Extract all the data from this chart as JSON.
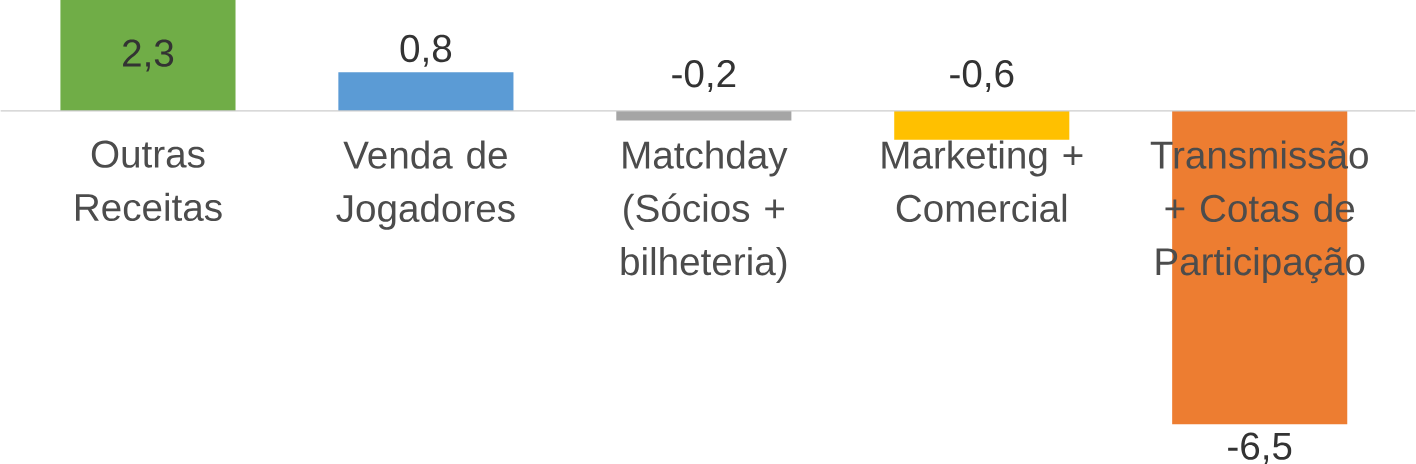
{
  "chart_data": {
    "type": "bar",
    "categories": [
      "Outras Receitas",
      "Venda de Jogadores",
      "Matchday (Sócios + bilheteria)",
      "Marketing + Comercial",
      "Transmissão + Cotas de Participação"
    ],
    "values": [
      2.3,
      0.8,
      -0.2,
      -0.6,
      -6.5
    ],
    "colors": [
      "#70ad47",
      "#5b9bd5",
      "#a5a5a5",
      "#ffc000",
      "#ed7d31"
    ],
    "value_labels": [
      "2,3",
      "0,8",
      "-0,2",
      "-0,6",
      "-6,5"
    ]
  }
}
